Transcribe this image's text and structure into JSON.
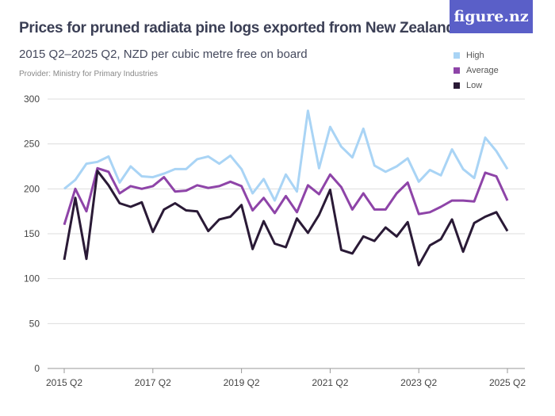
{
  "header": {
    "title": "Prices for pruned radiata pine logs exported from New Zealand",
    "subtitle": "2015 Q2–2025 Q2, NZD per cubic metre free on board",
    "provider": "Provider: Ministry for Primary Industries",
    "logo": "figure.nz"
  },
  "chart_data": {
    "type": "line",
    "title": "Prices for pruned radiata pine logs exported from New Zealand",
    "subtitle": "2015 Q2–2025 Q2, NZD per cubic metre free on board",
    "xlabel": "",
    "ylabel": "",
    "ylim": [
      0,
      300
    ],
    "yticks": [
      0,
      50,
      100,
      150,
      200,
      250,
      300
    ],
    "xtick_labels": [
      "2015 Q2",
      "2017 Q2",
      "2019 Q2",
      "2021 Q2",
      "2023 Q2",
      "2025 Q2"
    ],
    "x_start": "2015 Q2",
    "x_end": "2025 Q2",
    "x_interval": "quarter",
    "grid": true,
    "legend_position": "top-right",
    "series": [
      {
        "name": "High",
        "color": "#a9d4f5",
        "values": [
          200,
          210,
          228,
          230,
          236,
          207,
          225,
          214,
          213,
          217,
          222,
          222,
          233,
          236,
          228,
          237,
          222,
          195,
          211,
          187,
          216,
          197,
          287,
          223,
          269,
          247,
          235,
          267,
          226,
          219,
          225,
          234,
          208,
          221,
          215,
          244,
          222,
          212,
          257,
          242,
          222
        ]
      },
      {
        "name": "Average",
        "color": "#8e44a8",
        "values": [
          160,
          200,
          175,
          223,
          219,
          195,
          203,
          200,
          203,
          213,
          197,
          198,
          204,
          201,
          203,
          208,
          203,
          176,
          190,
          173,
          192,
          174,
          204,
          194,
          216,
          202,
          177,
          195,
          177,
          177,
          195,
          207,
          172,
          174,
          180,
          187,
          187,
          186,
          218,
          214,
          187
        ]
      },
      {
        "name": "Low",
        "color": "#2a1a36",
        "values": [
          121,
          190,
          122,
          220,
          204,
          184,
          180,
          185,
          152,
          177,
          184,
          176,
          175,
          153,
          166,
          169,
          182,
          133,
          164,
          139,
          135,
          167,
          151,
          171,
          199,
          132,
          128,
          147,
          142,
          157,
          147,
          163,
          115,
          137,
          144,
          166,
          130,
          162,
          169,
          174,
          153
        ]
      }
    ]
  }
}
